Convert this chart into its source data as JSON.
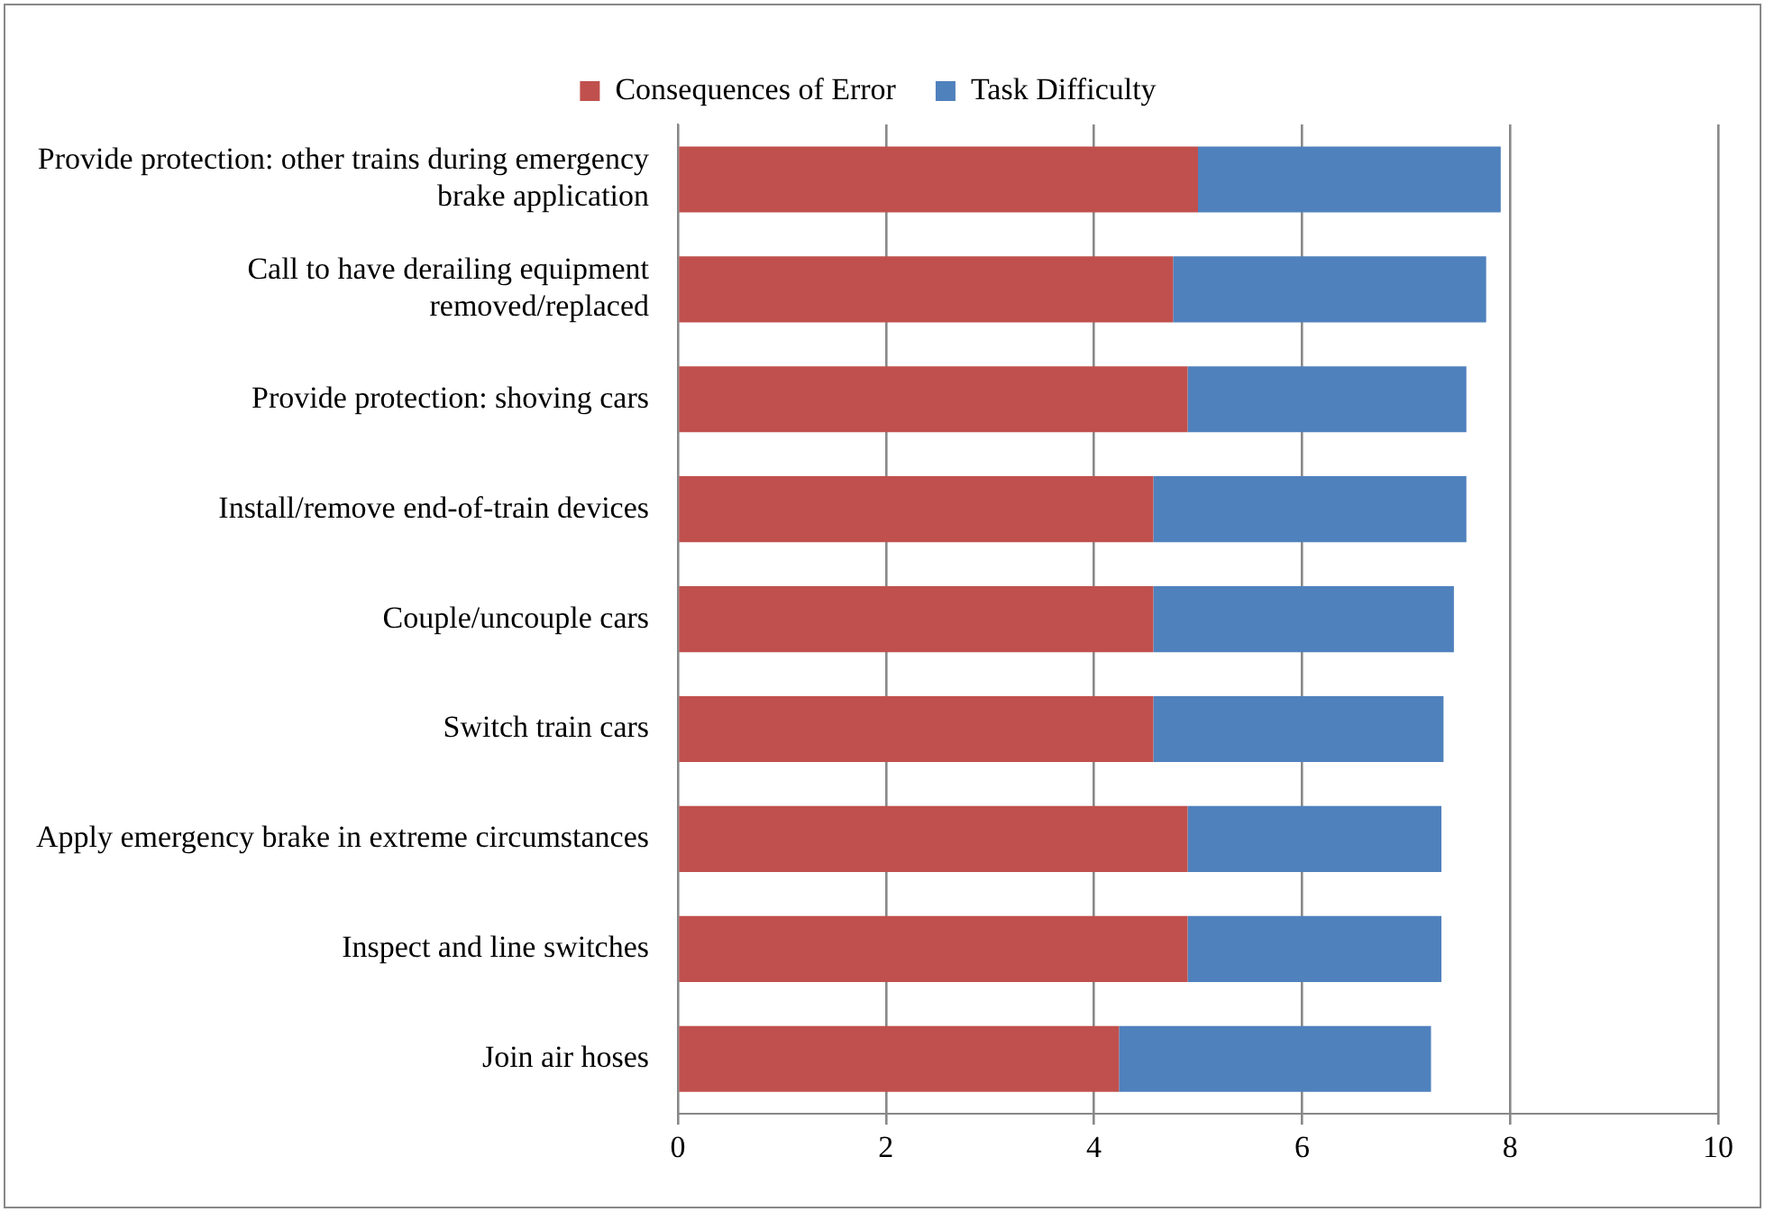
{
  "chart_data": {
    "type": "bar",
    "orientation": "horizontal",
    "stacked": true,
    "categories": [
      "Provide protection: other trains during emergency brake application",
      "Call to have derailing equipment removed/replaced",
      "Provide protection: shoving cars",
      "Install/remove end-of-train devices",
      "Couple/uncouple cars",
      "Switch train cars",
      "Apply emergency brake in extreme circumstances",
      "Inspect and line switches",
      "Join air hoses"
    ],
    "series": [
      {
        "name": "Consequences of Error",
        "color": "#c0504d",
        "values": [
          5.0,
          4.76,
          4.9,
          4.57,
          4.57,
          4.57,
          4.9,
          4.9,
          4.24
        ]
      },
      {
        "name": "Task Difficulty",
        "color": "#4f81bd",
        "values": [
          2.91,
          3.01,
          2.68,
          3.01,
          2.89,
          2.79,
          2.44,
          2.44,
          3.0
        ]
      }
    ],
    "xlim": [
      0,
      10
    ],
    "xticks": [
      0,
      2,
      4,
      6,
      8,
      10
    ],
    "grid": "x",
    "legend": "top"
  }
}
